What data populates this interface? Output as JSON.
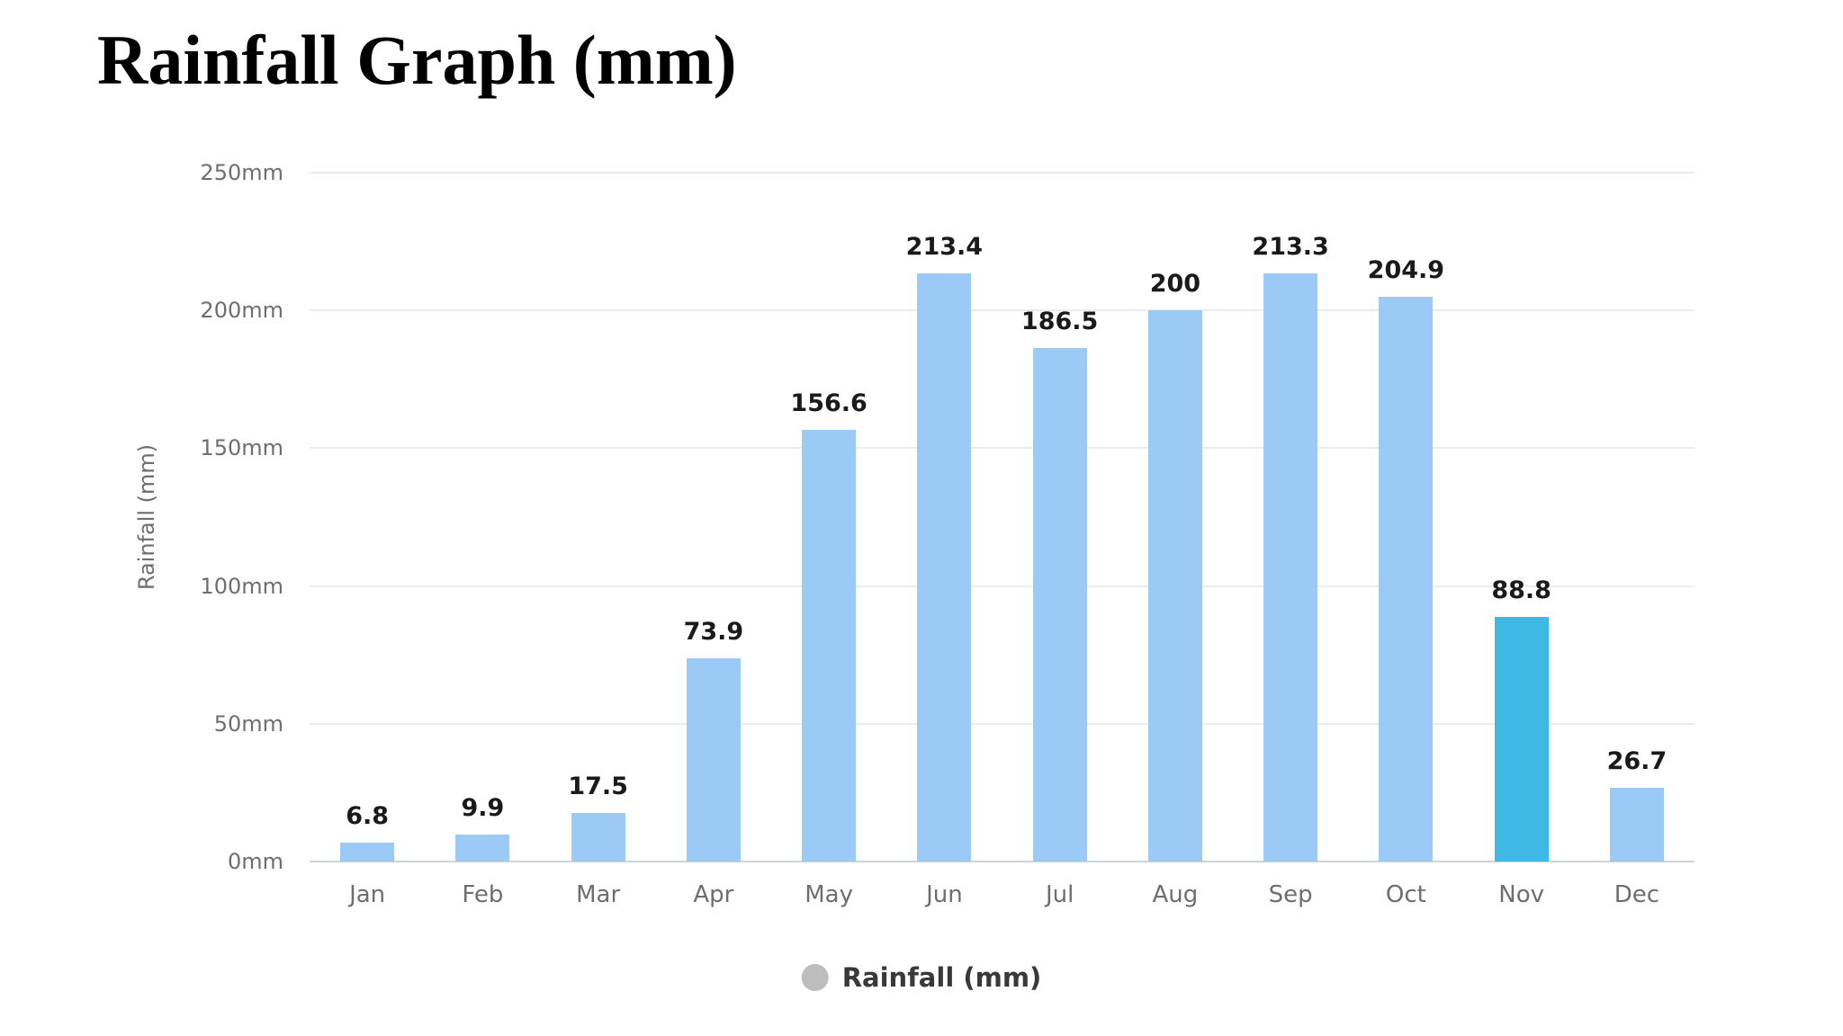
{
  "chart_data": {
    "type": "bar",
    "title": "Rainfall Graph (mm)",
    "ylabel": "Rainfall (mm)",
    "xlabel": "",
    "categories": [
      "Jan",
      "Feb",
      "Mar",
      "Apr",
      "May",
      "Jun",
      "Jul",
      "Aug",
      "Sep",
      "Oct",
      "Nov",
      "Dec"
    ],
    "values": [
      6.8,
      9.9,
      17.5,
      73.9,
      156.6,
      213.4,
      186.5,
      200,
      213.3,
      204.9,
      88.8,
      26.7
    ],
    "value_labels": [
      "6.8",
      "9.9",
      "17.5",
      "73.9",
      "156.6",
      "213.4",
      "186.5",
      "200",
      "213.3",
      "204.9",
      "88.8",
      "26.7"
    ],
    "ylim": [
      0,
      250
    ],
    "y_ticks": [
      0,
      50,
      100,
      150,
      200,
      250
    ],
    "y_tick_suffix": "mm",
    "grid": true,
    "legend": {
      "position": "bottom",
      "label": "Rainfall (mm)",
      "marker_color": "#bdbdbd"
    },
    "highlight_index": 10,
    "colors": {
      "bar": "#9bcaf6",
      "highlight_bar": "#3eb9e3",
      "grid_line": "#ececec",
      "axis_line": "#ccd4dc",
      "tick_label": "#6d6e71",
      "index_label": "#1a1a1a",
      "title": "#000000",
      "legend_text": "#38393b"
    }
  }
}
